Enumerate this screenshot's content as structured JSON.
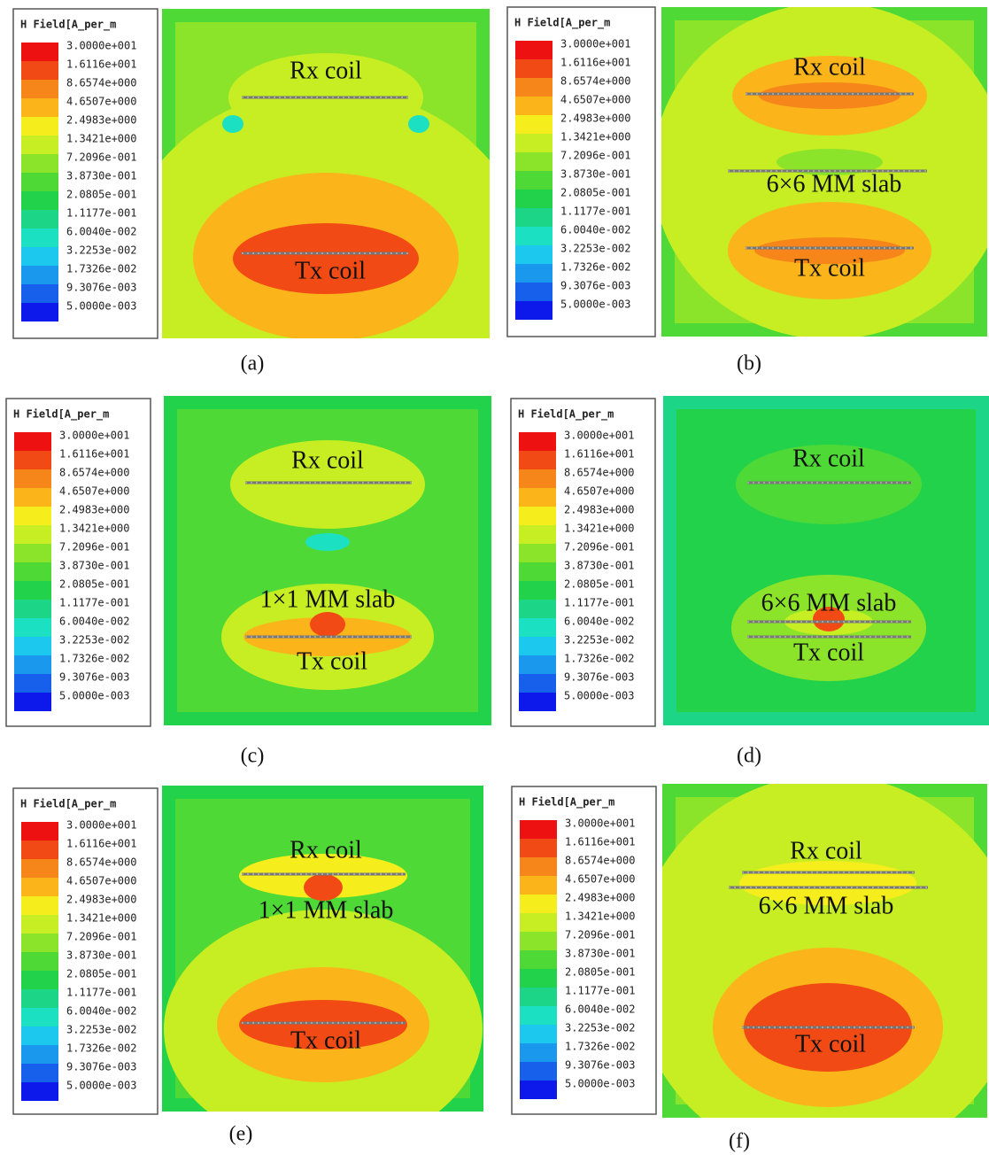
{
  "legend": {
    "title": "H Field[A_per_m",
    "labels": [
      "3.0000e+001",
      "1.6116e+001",
      "8.6574e+000",
      "4.6507e+000",
      "2.4983e+000",
      "1.3421e+000",
      "7.2096e-001",
      "3.8730e-001",
      "2.0805e-001",
      "1.1177e-001",
      "6.0040e-002",
      "3.2253e-002",
      "1.7326e-002",
      "9.3076e-003",
      "5.0000e-003"
    ],
    "colors": [
      "#ee1111",
      "#f24a14",
      "#f7861a",
      "#fbb51a",
      "#f5ee1c",
      "#c6ee22",
      "#8ce42a",
      "#4fd936",
      "#22d24a",
      "#1cd586",
      "#1ce0c2",
      "#1cc8ee",
      "#1a98ee",
      "#1660ec",
      "#0d18ea"
    ]
  },
  "panels": [
    {
      "caption": "(a)",
      "labels": [
        "Rx coil",
        "Tx coil"
      ]
    },
    {
      "caption": "(b)",
      "labels": [
        "Rx coil",
        "6×6 MM slab",
        "Tx coil"
      ]
    },
    {
      "caption": "(c)",
      "labels": [
        "Rx coil",
        "1×1 MM slab",
        "Tx coil"
      ]
    },
    {
      "caption": "(d)",
      "labels": [
        "Rx coil",
        "6×6 MM slab",
        "Tx coil"
      ]
    },
    {
      "caption": "(e)",
      "labels": [
        "Rx coil",
        "1×1 MM slab",
        "Tx coil"
      ]
    },
    {
      "caption": "(f)",
      "labels": [
        "Rx coil",
        "6×6 MM slab",
        "Tx coil"
      ]
    }
  ]
}
